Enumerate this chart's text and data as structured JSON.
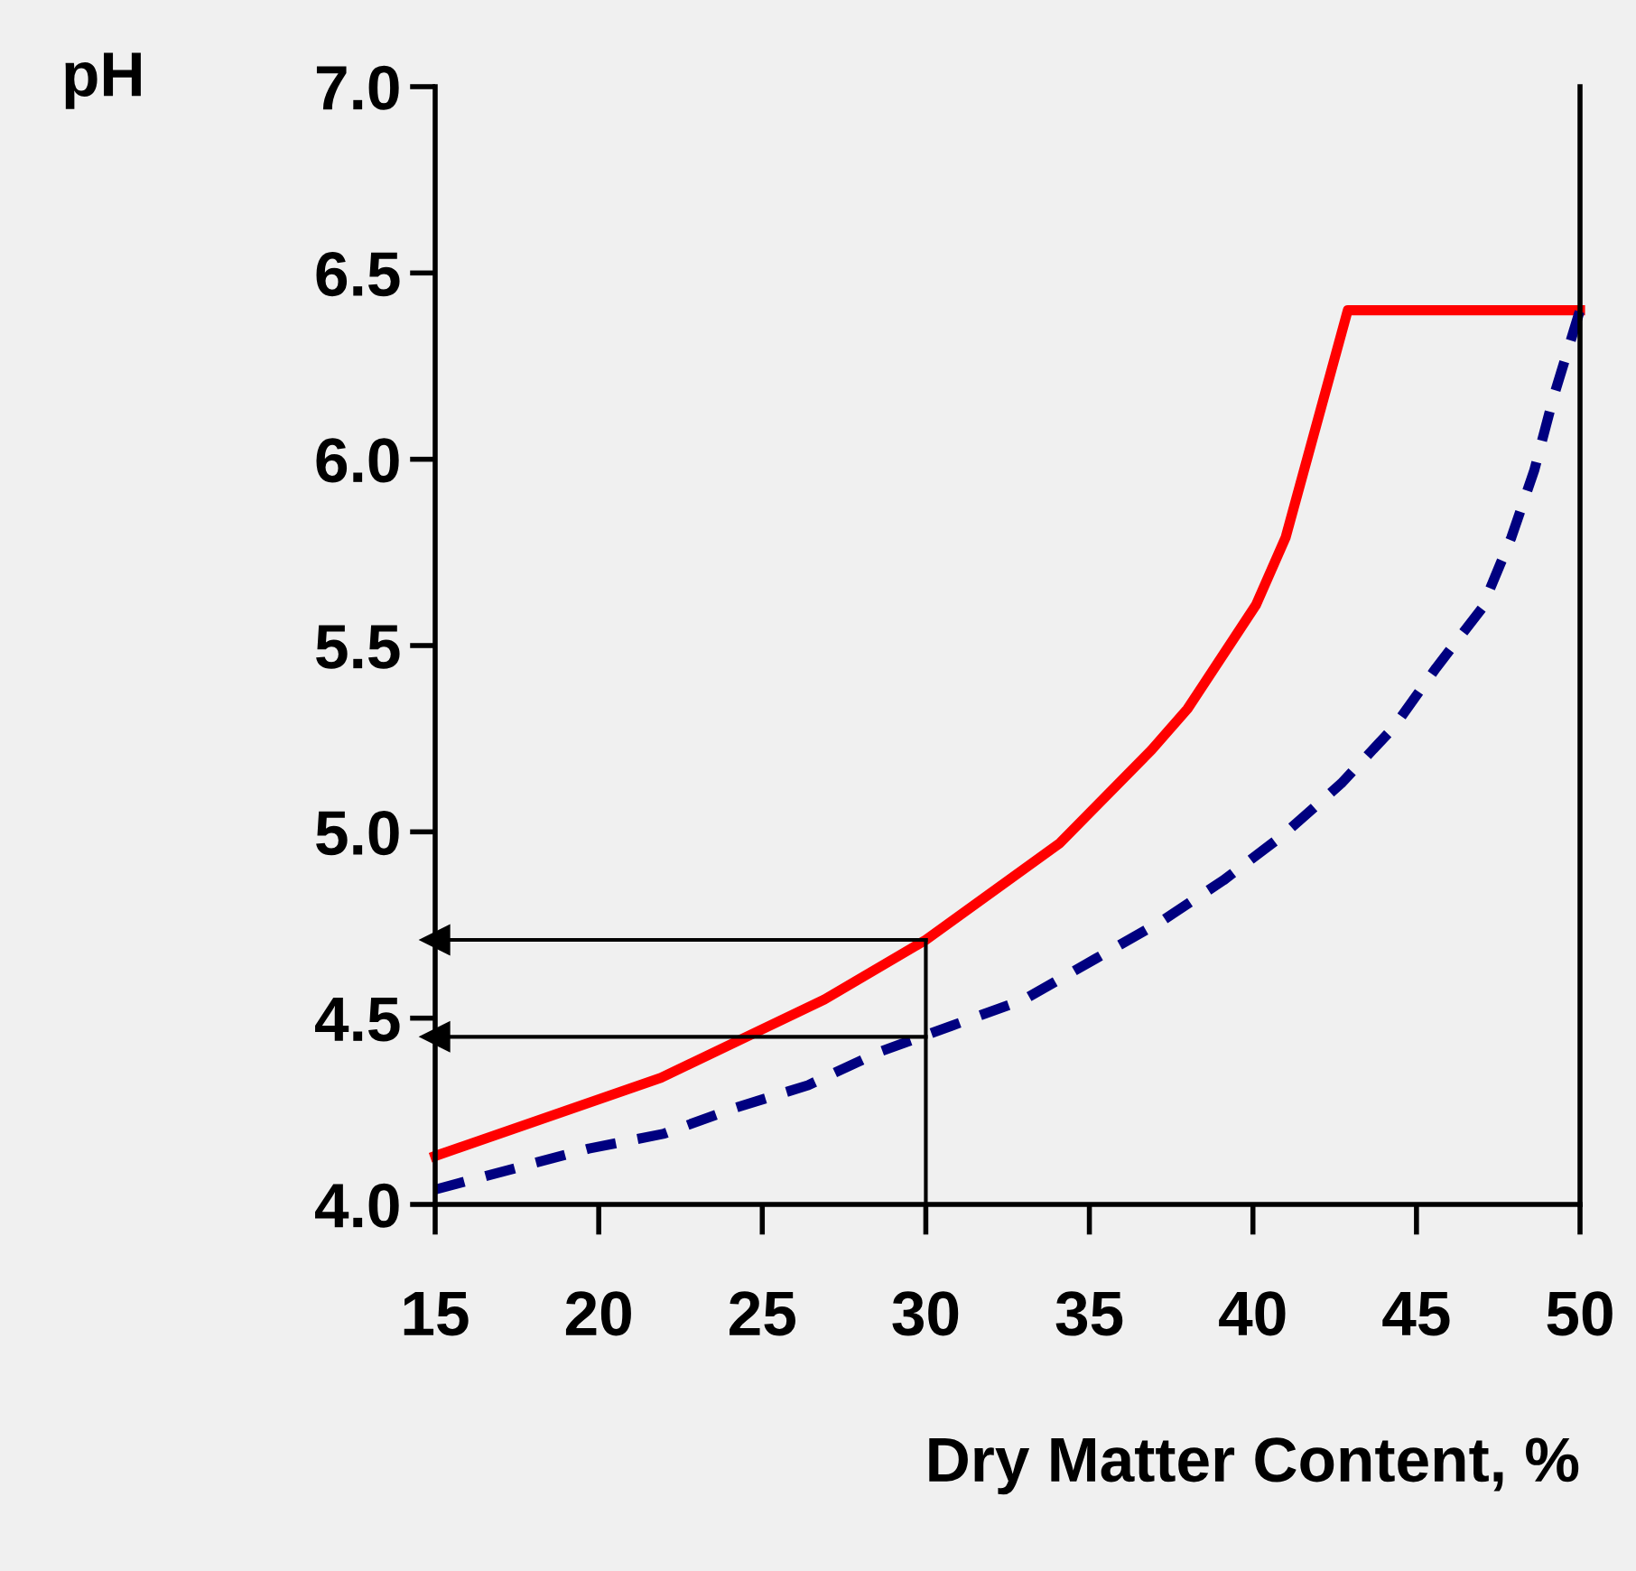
{
  "chart_data": {
    "type": "line",
    "ylabel": "pH",
    "xlabel": "Dry Matter Content, %",
    "xlim": [
      15,
      50
    ],
    "xticks": [
      15,
      20,
      25,
      30,
      35,
      40,
      45,
      50
    ],
    "ylim": [
      4.0,
      7.0
    ],
    "yticks": [
      {
        "value": 4.0,
        "label": "4.0"
      },
      {
        "value": 4.5,
        "label": "4.5"
      },
      {
        "value": 5.0,
        "label": "5.0"
      },
      {
        "value": 5.5,
        "label": "5.5"
      },
      {
        "value": 6.0,
        "label": "6.0"
      },
      {
        "value": 6.5,
        "label": "6.5"
      },
      {
        "value": 7.0,
        "label": "7.0"
      }
    ],
    "grid": false,
    "legend": false,
    "series": [
      {
        "color": "#ff0000",
        "line_style": "solid",
        "x": [
          15,
          21.9,
          26.9,
          30,
          34.1,
          36.9,
          38,
          40.1,
          41,
          42.9,
          50
        ],
        "values": [
          4.13,
          4.34,
          4.55,
          4.71,
          4.97,
          5.22,
          5.33,
          5.61,
          5.79,
          6.4,
          6.4
        ]
      },
      {
        "color": "#000080",
        "line_style": "dashed",
        "x": [
          15,
          19.7,
          22,
          24.2,
          26.4,
          28.6,
          30.8,
          33,
          35.2,
          37.2,
          39.1,
          40.9,
          42.7,
          44.3,
          45.6,
          47,
          47.9,
          48.6,
          49.2,
          50
        ],
        "values": [
          4.04,
          4.15,
          4.19,
          4.26,
          4.32,
          4.41,
          4.48,
          4.55,
          4.66,
          4.76,
          4.87,
          4.99,
          5.13,
          5.28,
          5.44,
          5.6,
          5.79,
          5.97,
          6.17,
          6.4
        ]
      },
      {
        "color": "#000000",
        "line_style": "solid",
        "marker": "triangle",
        "x": [
          30,
          15
        ],
        "values": [
          4.71,
          4.71
        ]
      },
      {
        "color": "#000000",
        "line_style": "solid",
        "marker": "triangle",
        "x": [
          30,
          15
        ],
        "values": [
          4.45,
          4.45
        ]
      },
      {
        "color": "#000000",
        "line_style": "solid",
        "x": [
          30,
          30
        ],
        "values": [
          4.0,
          4.71
        ]
      }
    ]
  }
}
